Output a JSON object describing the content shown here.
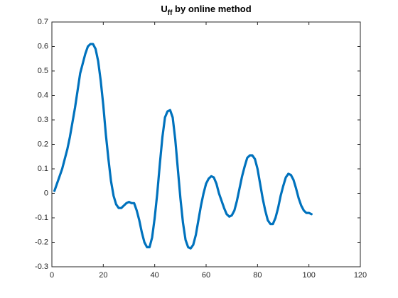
{
  "chart_data": {
    "type": "line",
    "title": "U",
    "title_subscript": "ff",
    "title_suffix": "by online method",
    "x": [
      1,
      2,
      3,
      4,
      5,
      6,
      7,
      8,
      9,
      10,
      11,
      12,
      13,
      14,
      15,
      16,
      17,
      18,
      19,
      20,
      21,
      22,
      23,
      24,
      25,
      26,
      27,
      28,
      29,
      30,
      31,
      32,
      33,
      34,
      35,
      36,
      37,
      38,
      39,
      40,
      41,
      42,
      43,
      44,
      45,
      46,
      47,
      48,
      49,
      50,
      51,
      52,
      53,
      54,
      55,
      56,
      57,
      58,
      59,
      60,
      61,
      62,
      63,
      64,
      65,
      66,
      67,
      68,
      69,
      70,
      71,
      72,
      73,
      74,
      75,
      76,
      77,
      78,
      79,
      80,
      81,
      82,
      83,
      84,
      85,
      86,
      87,
      88,
      89,
      90,
      91,
      92,
      93,
      94,
      95,
      96,
      97,
      98,
      99,
      100,
      101
    ],
    "series": [
      {
        "color": "#0072bd",
        "values": [
          0.01,
          0.04,
          0.07,
          0.1,
          0.14,
          0.18,
          0.23,
          0.29,
          0.35,
          0.42,
          0.49,
          0.53,
          0.57,
          0.6,
          0.61,
          0.61,
          0.59,
          0.54,
          0.46,
          0.36,
          0.24,
          0.14,
          0.05,
          -0.01,
          -0.045,
          -0.06,
          -0.06,
          -0.05,
          -0.04,
          -0.035,
          -0.04,
          -0.04,
          -0.07,
          -0.11,
          -0.16,
          -0.2,
          -0.22,
          -0.22,
          -0.18,
          -0.1,
          0.0,
          0.12,
          0.23,
          0.31,
          0.335,
          0.34,
          0.31,
          0.22,
          0.1,
          -0.02,
          -0.12,
          -0.19,
          -0.22,
          -0.225,
          -0.21,
          -0.17,
          -0.11,
          -0.05,
          0.0,
          0.04,
          0.06,
          0.07,
          0.065,
          0.04,
          0.0,
          -0.03,
          -0.06,
          -0.085,
          -0.095,
          -0.09,
          -0.07,
          -0.03,
          0.02,
          0.07,
          0.11,
          0.145,
          0.155,
          0.155,
          0.14,
          0.1,
          0.04,
          -0.02,
          -0.07,
          -0.11,
          -0.125,
          -0.125,
          -0.1,
          -0.06,
          -0.01,
          0.03,
          0.065,
          0.08,
          0.075,
          0.055,
          0.02,
          -0.02,
          -0.05,
          -0.07,
          -0.08,
          -0.08,
          -0.085
        ]
      }
    ],
    "xlim": [
      0,
      120
    ],
    "xticks": [
      0,
      20,
      40,
      60,
      80,
      100,
      120
    ],
    "ylim": [
      -0.3,
      0.7
    ],
    "yticks": [
      -0.3,
      -0.2,
      -0.1,
      0,
      0.1,
      0.2,
      0.3,
      0.4,
      0.5,
      0.6,
      0.7
    ]
  }
}
